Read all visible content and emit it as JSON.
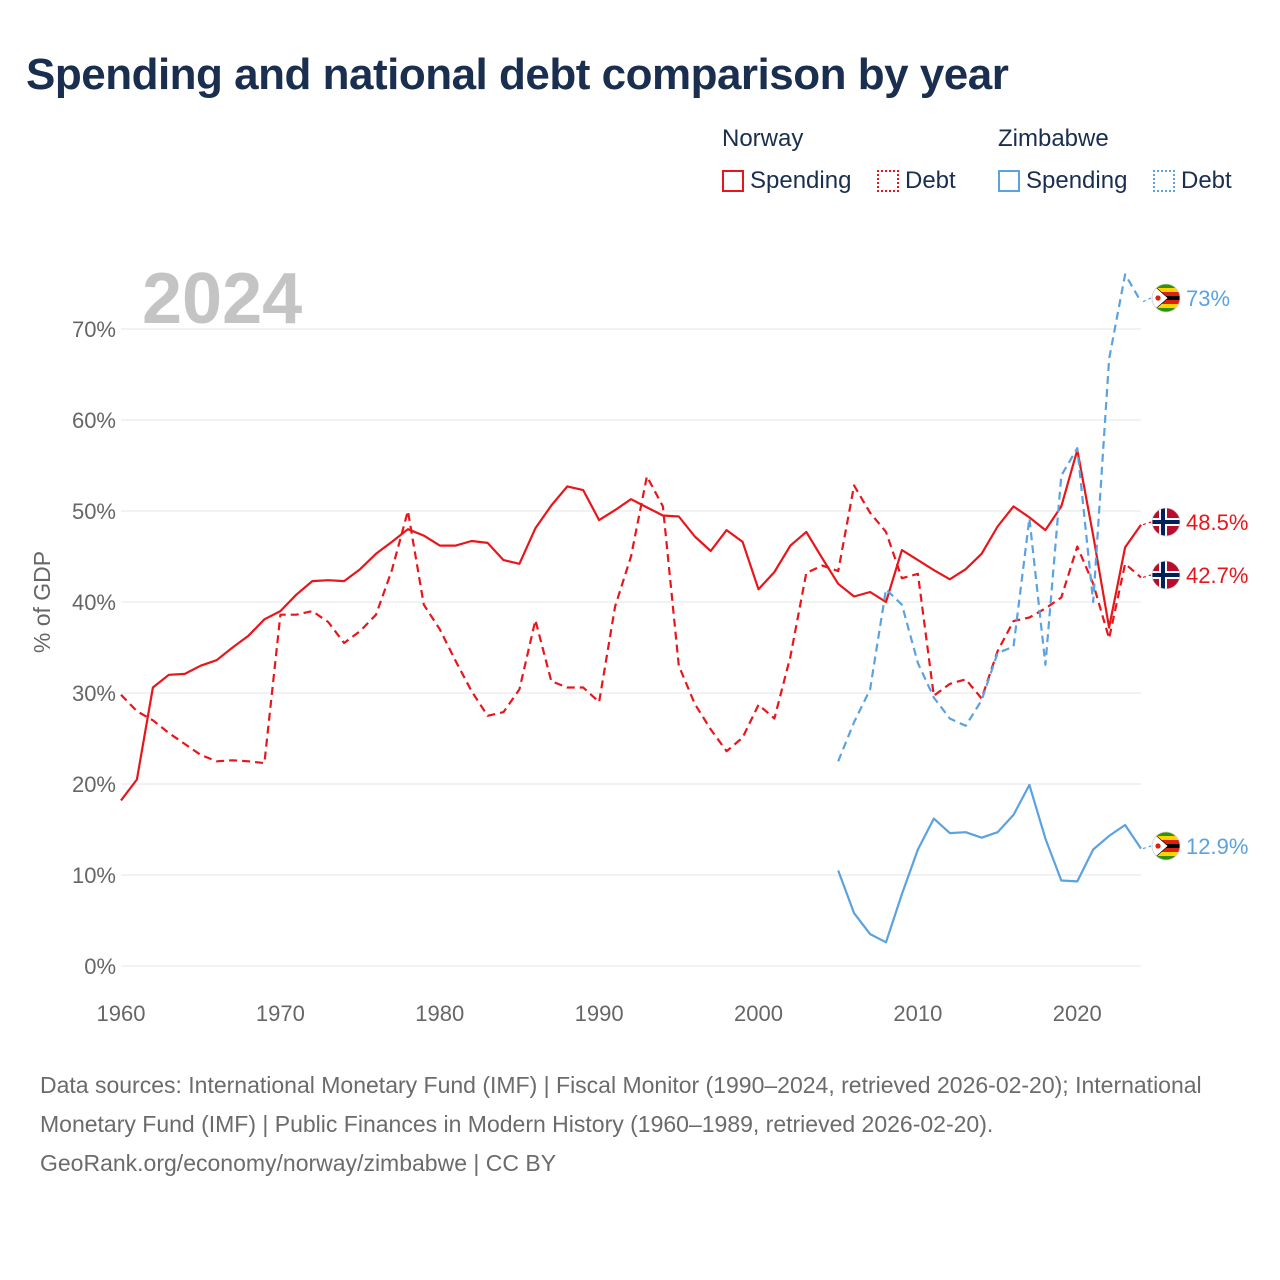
{
  "title": "Spending and national debt comparison by year",
  "year_label": "2024",
  "legend": {
    "groups": [
      {
        "country": "Norway",
        "items": [
          {
            "label": "Spending",
            "style": "solid",
            "color": "#e8161b"
          },
          {
            "label": "Debt",
            "style": "dotted",
            "color": "#e8161b"
          }
        ]
      },
      {
        "country": "Zimbabwe",
        "items": [
          {
            "label": "Spending",
            "style": "solid",
            "color": "#5aa2e0"
          },
          {
            "label": "Debt",
            "style": "dotted",
            "color": "#5aa2e0"
          }
        ]
      }
    ]
  },
  "chart_data": {
    "type": "line",
    "ylabel": "% of GDP",
    "xlabel": "",
    "xlim": [
      1960,
      2024
    ],
    "ylim": [
      0,
      76
    ],
    "x_ticks": [
      1960,
      1970,
      1980,
      1990,
      2000,
      2010,
      2020
    ],
    "y_ticks": [
      0,
      10,
      20,
      30,
      40,
      50,
      60,
      70
    ],
    "y_tick_labels": [
      "0%",
      "10%",
      "20%",
      "30%",
      "40%",
      "50%",
      "60%",
      "70%"
    ],
    "series": [
      {
        "name": "Norway Spending",
        "country": "Norway",
        "color": "#e8161b",
        "dash": "solid",
        "start_year": 1960,
        "values": [
          18.2,
          20.5,
          30.6,
          32.0,
          32.1,
          33.0,
          33.6,
          35.0,
          36.3,
          38.1,
          39.0,
          40.8,
          42.3,
          42.4,
          42.3,
          43.6,
          45.3,
          46.6,
          48.0,
          47.3,
          46.2,
          46.2,
          46.7,
          46.5,
          44.6,
          44.2,
          48.1,
          50.6,
          52.7,
          52.3,
          49.0,
          50.1,
          51.3,
          50.4,
          49.5,
          49.4,
          47.2,
          45.6,
          47.9,
          46.6,
          41.4,
          43.3,
          46.2,
          47.7,
          44.8,
          42.0,
          40.6,
          41.1,
          40.0,
          45.7,
          44.6,
          43.5,
          42.5,
          43.6,
          45.3,
          48.3,
          50.5,
          49.3,
          47.9,
          50.5,
          56.7,
          47.3,
          37.2,
          46.0,
          48.5
        ],
        "end_label": "48.5%"
      },
      {
        "name": "Norway Debt",
        "country": "Norway",
        "color": "#e8161b",
        "dash": "dashed",
        "start_year": 1960,
        "values": [
          29.8,
          28.0,
          27.0,
          25.6,
          24.4,
          23.2,
          22.5,
          22.6,
          22.5,
          22.3,
          38.6,
          38.6,
          39.0,
          37.8,
          35.5,
          36.8,
          38.6,
          43.5,
          50.0,
          39.7,
          37.0,
          33.5,
          30.2,
          27.5,
          27.9,
          30.4,
          38.0,
          31.3,
          30.6,
          30.6,
          29.0,
          39.5,
          45.0,
          53.8,
          50.5,
          33.0,
          28.8,
          26.0,
          23.6,
          25.1,
          28.7,
          27.2,
          34.0,
          43.2,
          44.0,
          43.4,
          52.8,
          49.8,
          47.7,
          42.6,
          43.1,
          29.7,
          31.0,
          31.5,
          29.4,
          34.6,
          37.9,
          38.3,
          39.3,
          40.5,
          46.1,
          42.0,
          36.0,
          44.2,
          42.7
        ],
        "end_label": "42.7%"
      },
      {
        "name": "Zimbabwe Spending",
        "country": "Zimbabwe",
        "color": "#5aa2e0",
        "dash": "solid",
        "start_year": 2005,
        "values": [
          10.5,
          5.8,
          3.5,
          2.6,
          7.9,
          12.8,
          16.2,
          14.6,
          14.7,
          14.1,
          14.7,
          16.6,
          19.9,
          14.0,
          9.4,
          9.3,
          12.8,
          14.3,
          15.5,
          12.9
        ],
        "end_label": "12.9%"
      },
      {
        "name": "Zimbabwe Debt",
        "country": "Zimbabwe",
        "color": "#5aa2e0",
        "dash": "dashed",
        "start_year": 2005,
        "values": [
          22.5,
          26.8,
          30.4,
          41.4,
          39.7,
          33.3,
          29.5,
          27.2,
          26.4,
          29.2,
          34.4,
          35.1,
          49.2,
          33.1,
          53.9,
          56.9,
          40.0,
          66.7,
          76.0,
          73.0
        ],
        "end_label": "73%"
      }
    ]
  },
  "footer": {
    "sources": "Data sources: International Monetary Fund (IMF) | Fiscal Monitor (1990–2024, retrieved 2026-02-20); International Monetary Fund (IMF) | Public Finances in Modern History (1960–1989, retrieved 2026-02-20).",
    "credit": "GeoRank.org/economy/norway/zimbabwe | CC BY"
  }
}
